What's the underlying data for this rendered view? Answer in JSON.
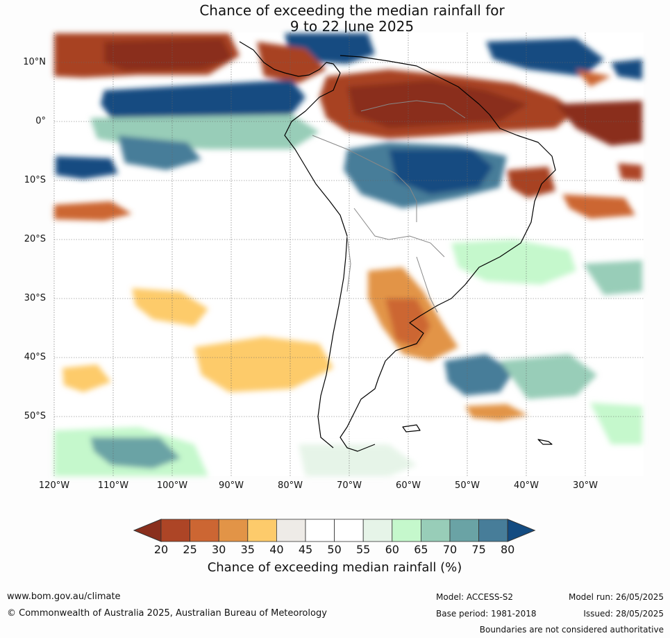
{
  "title_line1": "Chance of exceeding the median rainfall for",
  "title_line2": "9 to 22 June 2025",
  "map": {
    "lat_labels": [
      "10°N",
      "0°",
      "10°S",
      "20°S",
      "30°S",
      "40°S",
      "50°S"
    ],
    "lon_labels": [
      "120°W",
      "110°W",
      "100°W",
      "90°W",
      "80°W",
      "70°W",
      "60°W",
      "50°W",
      "40°W",
      "30°W"
    ]
  },
  "colorbar": {
    "ticks": [
      "20",
      "25",
      "30",
      "35",
      "40",
      "45",
      "50",
      "55",
      "60",
      "65",
      "70",
      "75",
      "80"
    ],
    "colors": [
      "#8a2f1d",
      "#ad4526",
      "#cc6633",
      "#e29447",
      "#fdcb6b",
      "#eeebe7",
      "#ffffff",
      "#ffffff",
      "#e6f4e8",
      "#c5f8cc",
      "#98cdb8",
      "#6aa3a5",
      "#477d99",
      "#134b81"
    ],
    "label": "Chance of exceeding median rainfall (%)"
  },
  "footer": {
    "url": "www.bom.gov.au/climate",
    "copyright": "© Commonwealth of Australia 2025, Australian Bureau of Meteorology",
    "model": "Model: ACCESS-S2",
    "model_run": "Model run: 26/05/2025",
    "base_period": "Base period: 1981-2018",
    "issued": "Issued: 28/05/2025",
    "disclaimer": "Boundaries are not considered authoritative"
  }
}
